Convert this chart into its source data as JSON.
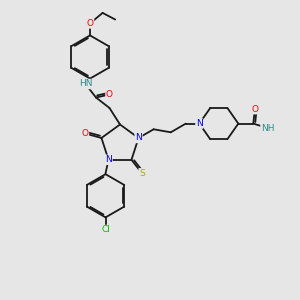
{
  "bg_color": "#e6e6e6",
  "bond_color": "#1a1a1a",
  "bond_width": 1.3,
  "dbo": 0.06,
  "atom_colors": {
    "N": "#0000ee",
    "O": "#ee0000",
    "S": "#aaaa00",
    "Cl": "#00bb00",
    "HN": "#2e8b8b",
    "NH": "#2e8b8b",
    "NH2": "#2e8b8b"
  },
  "fs": 6.5
}
